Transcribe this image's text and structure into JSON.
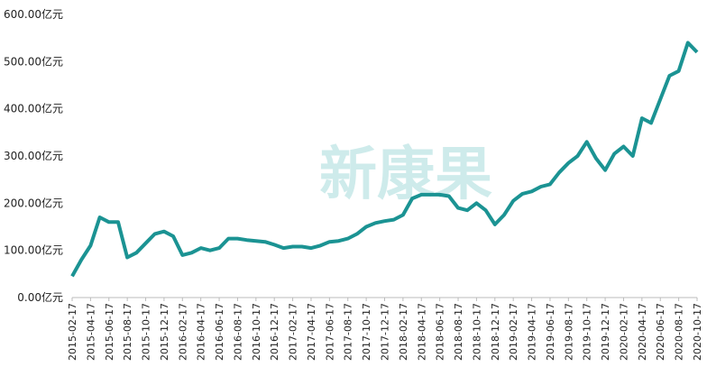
{
  "chart_data": {
    "type": "line",
    "watermark": "新康果",
    "categories": [
      "2015-02-17",
      null,
      "2015-04-17",
      null,
      "2015-06-17",
      null,
      "2015-08-17",
      null,
      "2015-10-17",
      null,
      "2015-12-17",
      null,
      "2016-02-17",
      null,
      "2016-04-17",
      null,
      "2016-06-17",
      null,
      "2016-08-17",
      null,
      "2016-10-17",
      null,
      "2016-12-17",
      null,
      "2017-02-17",
      null,
      "2017-04-17",
      null,
      "2017-06-17",
      null,
      "2017-08-17",
      null,
      "2017-10-17",
      null,
      "2017-12-17",
      null,
      "2018-02-17",
      null,
      "2018-04-17",
      null,
      "2018-06-17",
      null,
      "2018-08-17",
      null,
      "2018-10-17",
      null,
      "2018-12-17",
      null,
      "2019-02-17",
      null,
      "2019-04-17",
      null,
      "2019-06-17",
      null,
      "2019-08-17",
      null,
      "2019-10-17",
      null,
      "2019-12-17",
      null,
      "2020-02-17",
      null,
      "2020-04-17",
      null,
      "2020-06-17",
      null,
      "2020-08-17",
      null,
      "2020-10-17"
    ],
    "series": [
      {
        "color": "#1b9393",
        "values": [
          45,
          80,
          110,
          170,
          160,
          160,
          85,
          95,
          115,
          135,
          140,
          130,
          90,
          95,
          105,
          100,
          105,
          125,
          125,
          122,
          120,
          118,
          112,
          105,
          108,
          108,
          105,
          110,
          118,
          120,
          125,
          135,
          150,
          158,
          162,
          165,
          175,
          210,
          218,
          218,
          218,
          215,
          190,
          185,
          200,
          185,
          155,
          175,
          205,
          220,
          225,
          235,
          240,
          265,
          285,
          300,
          330,
          295,
          270,
          305,
          320,
          300,
          380,
          370,
          420,
          470,
          480,
          540,
          520
        ]
      }
    ],
    "ylim": [
      0,
      600
    ],
    "yticks": [
      {
        "value": 0,
        "label": "0.00亿元"
      },
      {
        "value": 100,
        "label": "100.00亿元"
      },
      {
        "value": 200,
        "label": "200.00亿元"
      },
      {
        "value": 300,
        "label": "300.00亿元"
      },
      {
        "value": 400,
        "label": "400.00亿元"
      },
      {
        "value": 500,
        "label": "500.00亿元"
      },
      {
        "value": 600,
        "label": "600.00亿元"
      }
    ]
  }
}
